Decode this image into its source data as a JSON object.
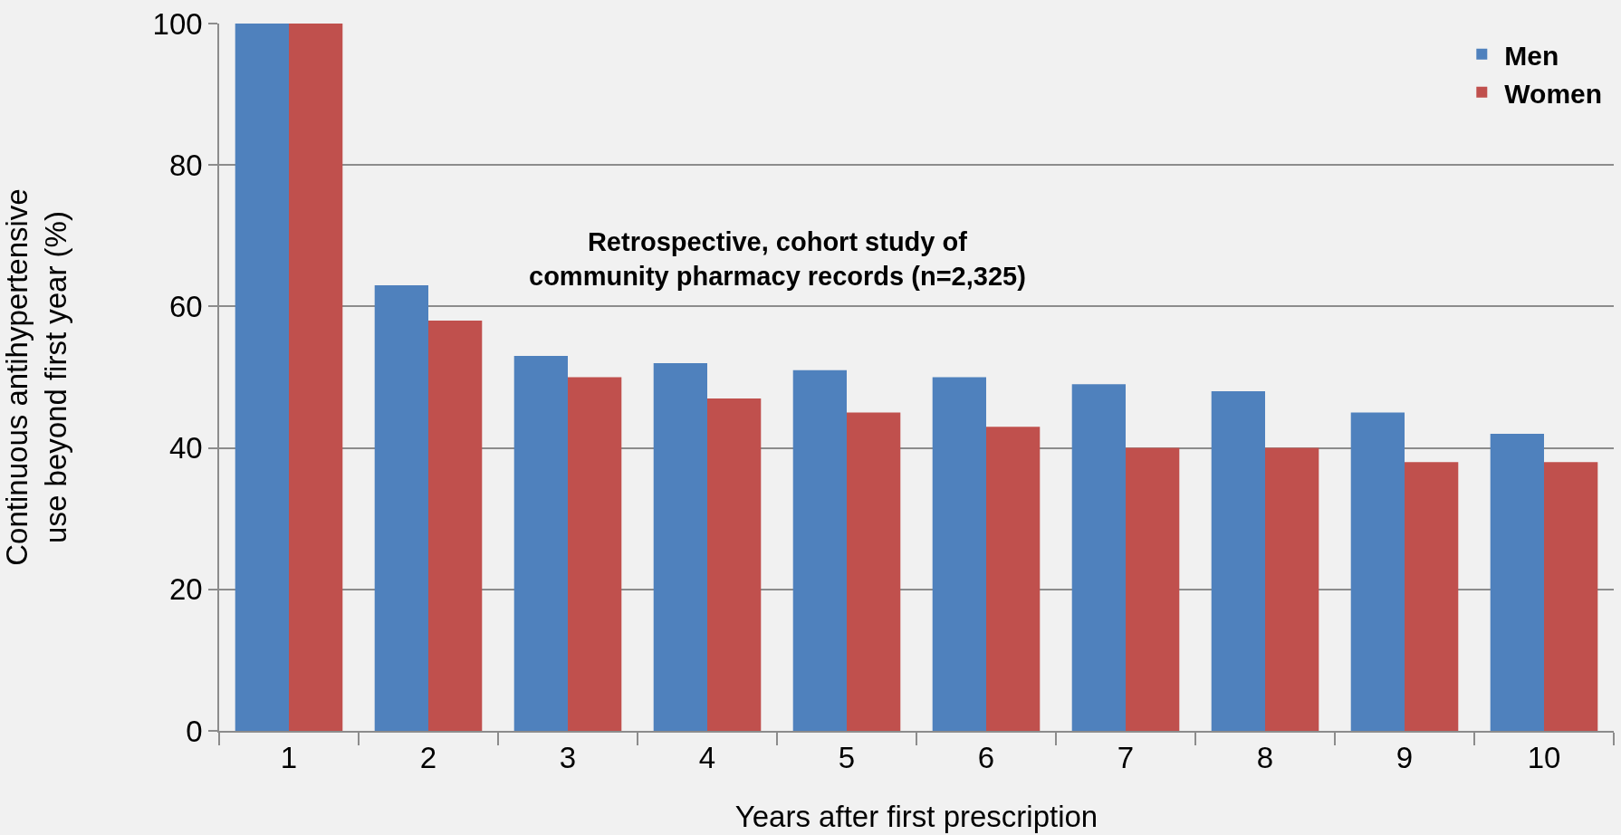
{
  "chart_data": {
    "type": "bar",
    "categories": [
      "1",
      "2",
      "3",
      "4",
      "5",
      "6",
      "7",
      "8",
      "9",
      "10"
    ],
    "xlabel": "Years after first prescription",
    "ylabel": "Continuous antihypertensive\nuse beyond first year (%)",
    "series": [
      {
        "name": "Men",
        "color": "#4f81bd",
        "values": [
          100,
          63,
          53,
          52,
          51,
          50,
          49,
          48,
          45,
          42
        ]
      },
      {
        "name": "Women",
        "color": "#c0504d",
        "values": [
          100,
          58,
          50,
          47,
          45,
          43,
          40,
          40,
          38,
          38
        ]
      }
    ],
    "ylim": [
      0,
      100
    ],
    "yticks": [
      0,
      20,
      40,
      60,
      80,
      100
    ],
    "grid": "y",
    "legend": "top right",
    "annotations": [
      "Retrospective, cohort study of\ncommunity pharmacy records (n=2,325)"
    ]
  }
}
